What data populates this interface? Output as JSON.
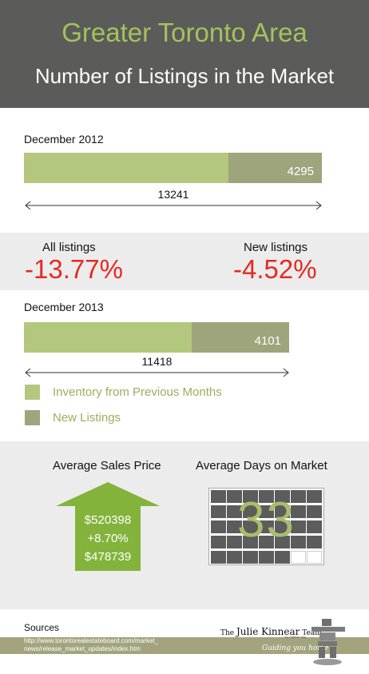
{
  "header": {
    "title": "Greater Toronto Area",
    "subtitle": "Number of Listings in the Market"
  },
  "colors": {
    "header_bg": "#5b5b5a",
    "accent_green": "#a5c25c",
    "bar_previous": "#b4c77e",
    "bar_new": "#9ea57d",
    "change_red": "#e32b21",
    "band_grey": "#ececec"
  },
  "dec2012": {
    "label": "December  2012",
    "new_listings": "4295",
    "total": "13241"
  },
  "changes": {
    "all_label": "All listings",
    "all_value": "-13.77%",
    "new_label": "New listings",
    "new_value": "-4.52%"
  },
  "dec2013": {
    "label": "December  2013",
    "new_listings": "4101",
    "total": "11418"
  },
  "legend": {
    "previous": "Inventory from Previous Months",
    "new": "New Listings"
  },
  "avg_price": {
    "title": "Average Sales Price",
    "current": "$520398",
    "change": "+8.70%",
    "previous": "$478739",
    "icon": "up-arrow-icon"
  },
  "avg_days": {
    "title": "Average Days on Market",
    "value": "33",
    "filled_cells": 33,
    "total_cells": 35
  },
  "sources": {
    "label": "Sources",
    "url_line1": "http://www.torontorealestateboard.com/market_",
    "url_line2": "news/release_market_updates/index.htm"
  },
  "brand": {
    "prefix": "The ",
    "name": "Julie Kinnear",
    "suffix": " Team",
    "sub": "by mfertal only",
    "tagline": "Guiding you home",
    "logo_icon": "inukshuk-icon"
  }
}
